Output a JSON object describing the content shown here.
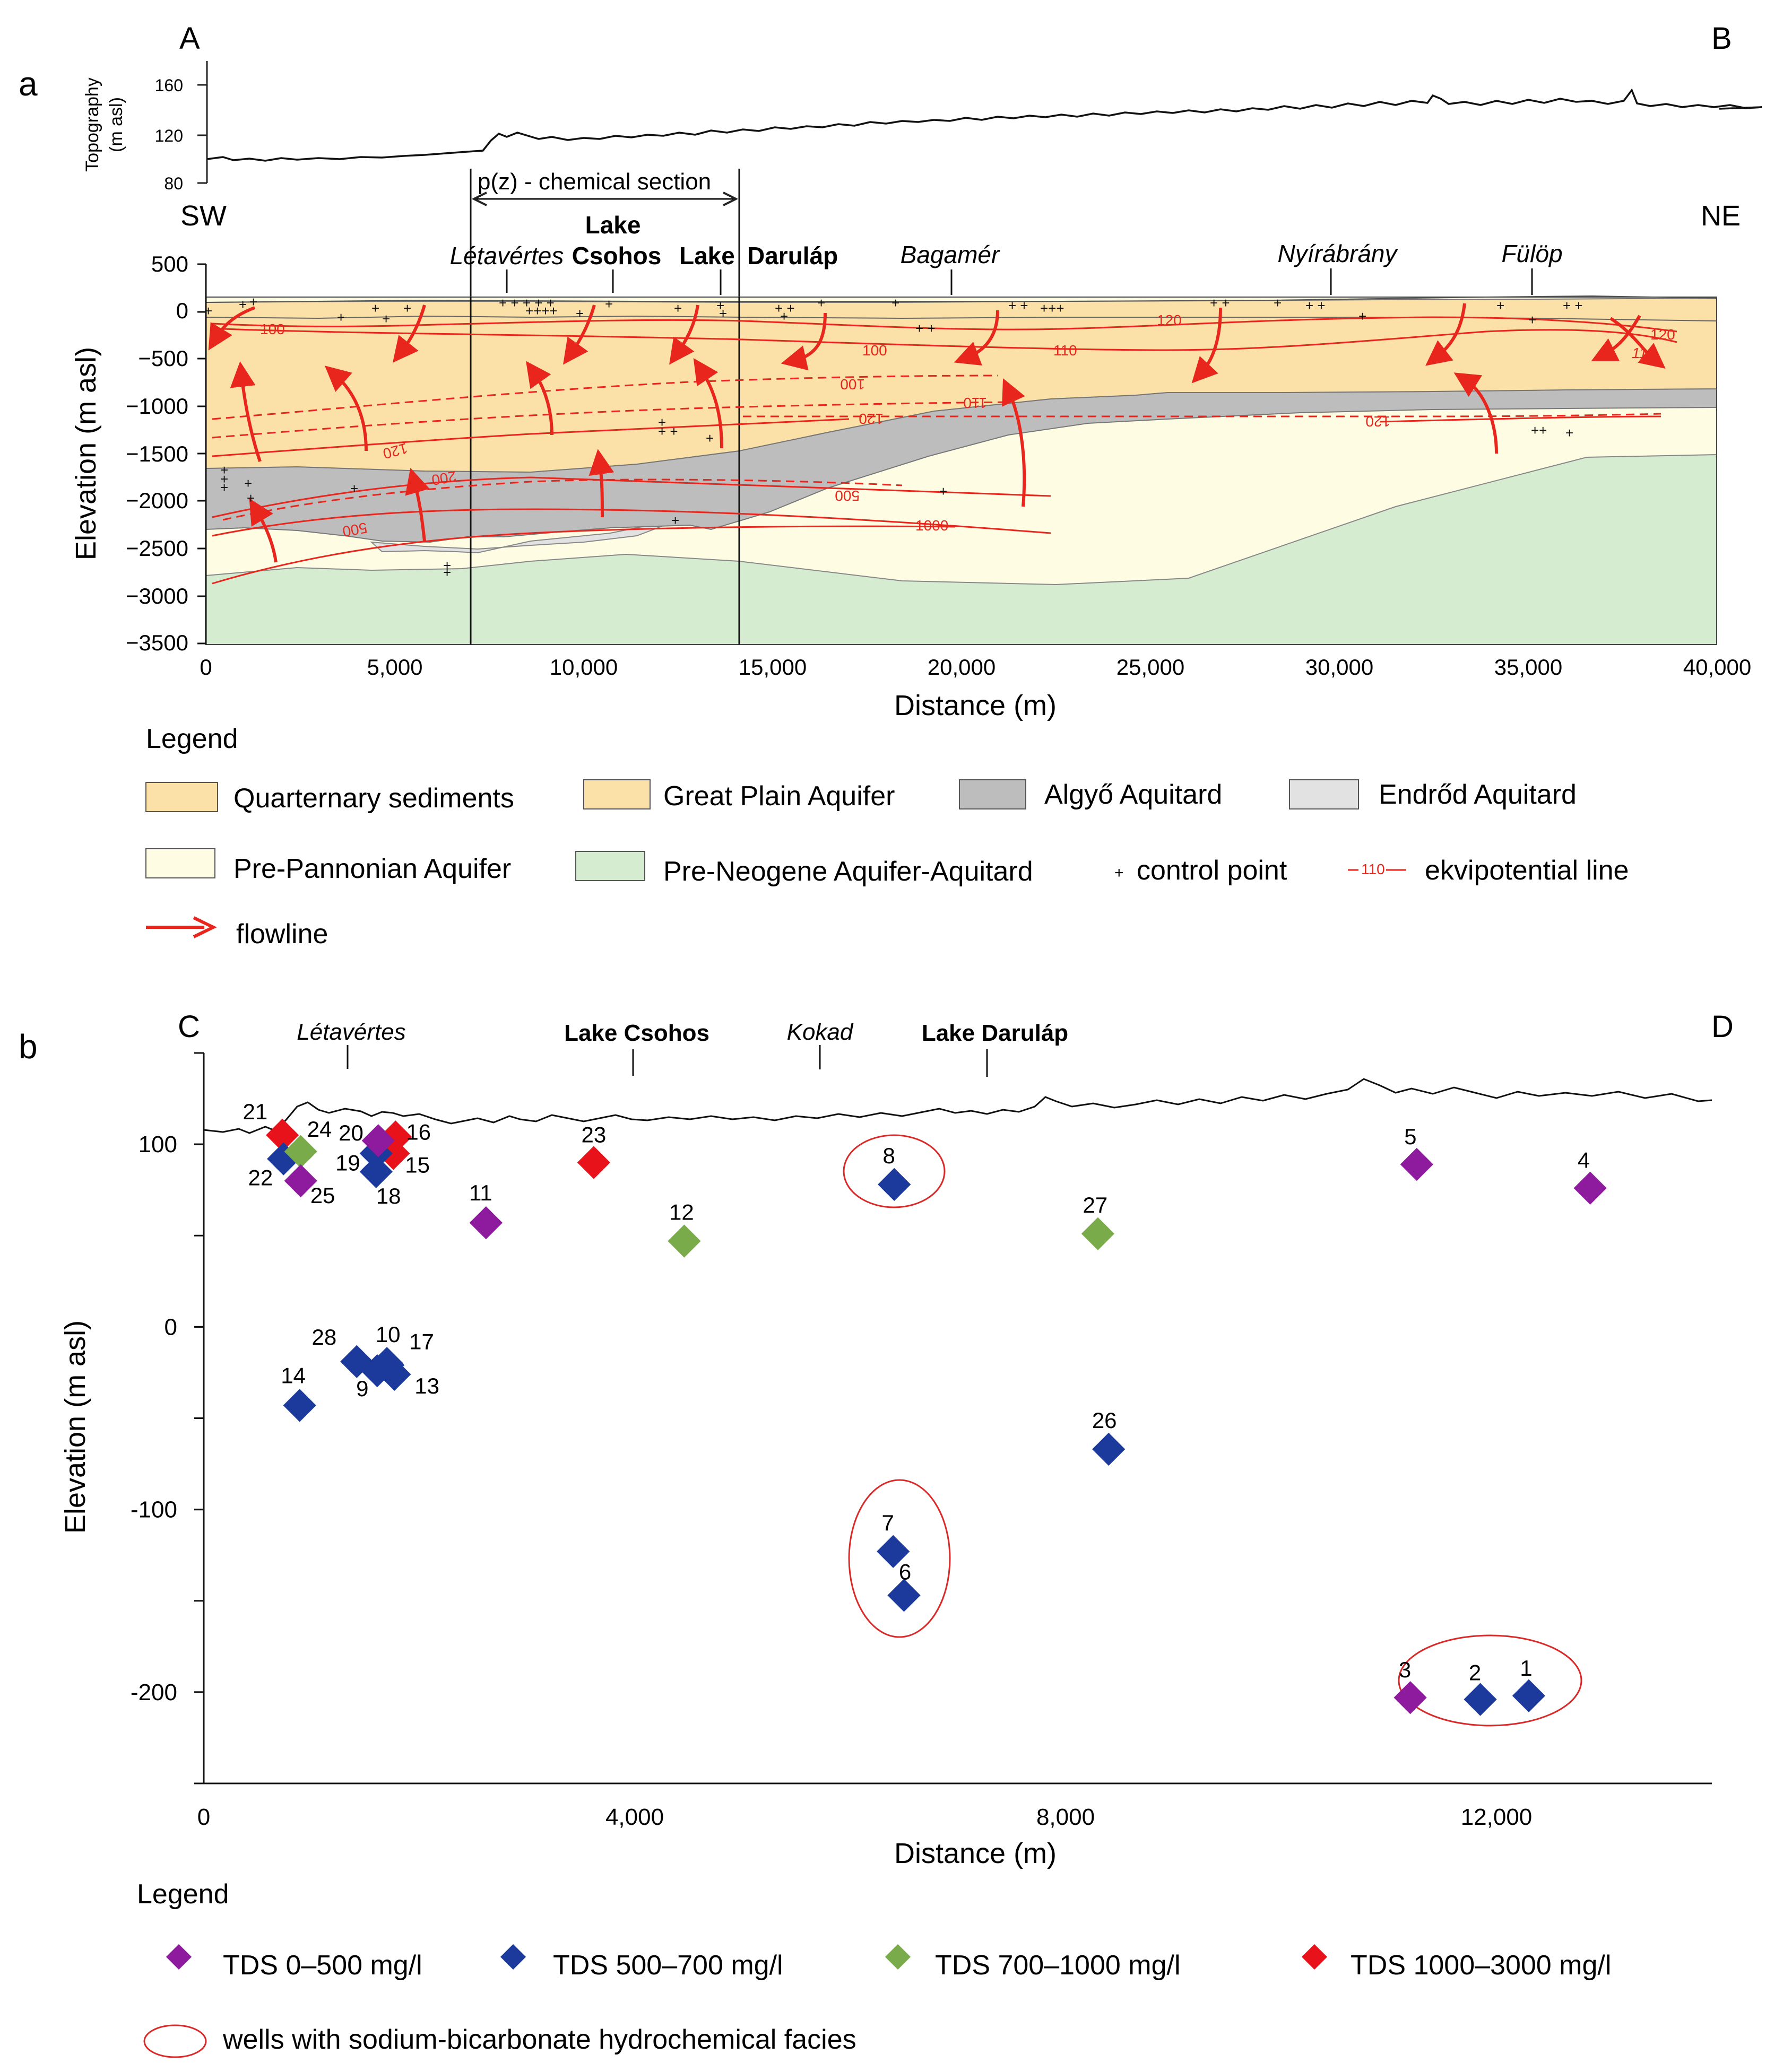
{
  "panel_a": {
    "letter": "a",
    "corner_left": "A",
    "corner_right": "B",
    "dir_left": "SW",
    "dir_right": "NE",
    "topo_label": "Topography",
    "topo_unit": "(m asl)",
    "topo_ticks": [
      "160",
      "120",
      "80"
    ],
    "section_label": "p(z) - chemical section",
    "ylabel": "Elevation (m asl)",
    "xlabel": "Distance (m)",
    "y_ticks": [
      "500",
      "0",
      "−500",
      "−1000",
      "−1500",
      "−2000",
      "−2500",
      "−3000",
      "−3500"
    ],
    "x_ticks": [
      "0",
      "5,000",
      "10,000",
      "15,000",
      "20,000",
      "25,000",
      "30,000",
      "35,000",
      "40,000"
    ],
    "places": {
      "letavertes": "Létavértes",
      "lake_csohos_1": "Lake",
      "lake_csohos_2": "Csohos",
      "lake_darulap_1": "Lake",
      "lake_darulap_2": "Daruláp",
      "bagamer": "Bagamér",
      "nyirabrany": "Nyírábrány",
      "fulop": "Fülöp"
    },
    "contour_labels": {
      "c100a": "100",
      "c100b": "100",
      "c110a": "110",
      "c120a": "120",
      "c120b": "120",
      "c110b": "110",
      "c120c": "120",
      "d100": "100",
      "d110": "110",
      "d120a": "120",
      "d120b": "120",
      "c200": "200",
      "c500a": "500",
      "d500": "500",
      "c1000": "1000"
    },
    "legend": {
      "title": "Legend",
      "quaternary": "Quarternary sediments",
      "great_plain": "Great Plain Aquifer",
      "algyo": "Algyő Aquitard",
      "endrod": "Endrőd Aquitard",
      "pre_pannonian": "Pre-Pannonian Aquifer",
      "pre_neogene": "Pre-Neogene Aquifer-Aquitard",
      "control_point": "control point",
      "ekvi_sample": "110",
      "ekvipotential": "ekvipotential line",
      "flowline": "flowline"
    },
    "colors": {
      "quaternary": "#fbe1a8",
      "great_plain": "#fbe1a8",
      "algyo": "#bdbdbd",
      "endrod": "#e2e2e2",
      "pre_pannonian": "#fefde3",
      "pre_neogene": "#d6ecd0",
      "flow": "#e8261d"
    }
  },
  "panel_b": {
    "letter": "b",
    "corner_left": "C",
    "corner_right": "D",
    "places": {
      "letavertes": "Létavértes",
      "lake_csohos": "Lake Csohos",
      "kokad": "Kokad",
      "lake_darulap": "Lake Daruláp"
    },
    "legend": {
      "title": "Legend",
      "tds1": "TDS 0–500 mg/l",
      "tds2": "TDS 500–700 mg/l",
      "tds3": "TDS 700–1000 mg/l",
      "tds4": "TDS 1000–3000 mg/l",
      "facies": "wells with sodium-bicarbonate hydrochemical facies"
    }
  },
  "chart_data": {
    "type": "scatter",
    "title": "",
    "xlabel": "Distance (m)",
    "ylabel": "Elevation (m asl)",
    "xlim": [
      0,
      14000
    ],
    "ylim": [
      -250,
      150
    ],
    "x_ticks": [
      0,
      4000,
      8000,
      12000
    ],
    "x_tick_labels": [
      "0",
      "4,000",
      "8,000",
      "12,000"
    ],
    "y_ticks": [
      100,
      0,
      -100,
      -200
    ],
    "y_tick_labels": [
      "100",
      "0",
      "-100",
      "-200"
    ],
    "categories": {
      "tds1": "#8e1a9e",
      "tds2": "#1b3a9c",
      "tds3": "#7aab4a",
      "tds4": "#e8131a"
    },
    "points": [
      {
        "label": "1",
        "x": 12300,
        "y": -202,
        "cat": "tds2"
      },
      {
        "label": "2",
        "x": 11850,
        "y": -204,
        "cat": "tds2"
      },
      {
        "label": "3",
        "x": 11200,
        "y": -203,
        "cat": "tds1"
      },
      {
        "label": "4",
        "x": 12870,
        "y": 76,
        "cat": "tds1"
      },
      {
        "label": "5",
        "x": 11260,
        "y": 89,
        "cat": "tds1"
      },
      {
        "label": "6",
        "x": 6500,
        "y": -147,
        "cat": "tds2"
      },
      {
        "label": "7",
        "x": 6400,
        "y": -123,
        "cat": "tds2"
      },
      {
        "label": "8",
        "x": 6410,
        "y": 78,
        "cat": "tds2"
      },
      {
        "label": "9",
        "x": 1610,
        "y": -24,
        "cat": "tds2"
      },
      {
        "label": "10",
        "x": 1700,
        "y": -20,
        "cat": "tds2"
      },
      {
        "label": "11",
        "x": 2620,
        "y": 57,
        "cat": "tds1"
      },
      {
        "label": "12",
        "x": 4460,
        "y": 47,
        "cat": "tds3"
      },
      {
        "label": "13",
        "x": 1770,
        "y": -26,
        "cat": "tds2"
      },
      {
        "label": "14",
        "x": 890,
        "y": -43,
        "cat": "tds2"
      },
      {
        "label": "15",
        "x": 1760,
        "y": 95,
        "cat": "tds4"
      },
      {
        "label": "16",
        "x": 1780,
        "y": 104,
        "cat": "tds4"
      },
      {
        "label": "17",
        "x": 1710,
        "y": -21,
        "cat": "tds2"
      },
      {
        "label": "18",
        "x": 1600,
        "y": 85,
        "cat": "tds2"
      },
      {
        "label": "19",
        "x": 1600,
        "y": 95,
        "cat": "tds2"
      },
      {
        "label": "20",
        "x": 1620,
        "y": 102,
        "cat": "tds1"
      },
      {
        "label": "21",
        "x": 730,
        "y": 105,
        "cat": "tds4"
      },
      {
        "label": "22",
        "x": 740,
        "y": 92,
        "cat": "tds2"
      },
      {
        "label": "23",
        "x": 3620,
        "y": 90,
        "cat": "tds4"
      },
      {
        "label": "24",
        "x": 900,
        "y": 96,
        "cat": "tds3"
      },
      {
        "label": "25",
        "x": 900,
        "y": 80,
        "cat": "tds1"
      },
      {
        "label": "26",
        "x": 8400,
        "y": -67,
        "cat": "tds2"
      },
      {
        "label": "27",
        "x": 8300,
        "y": 51,
        "cat": "tds3"
      },
      {
        "label": "28",
        "x": 1420,
        "y": -19,
        "cat": "tds2"
      }
    ]
  }
}
